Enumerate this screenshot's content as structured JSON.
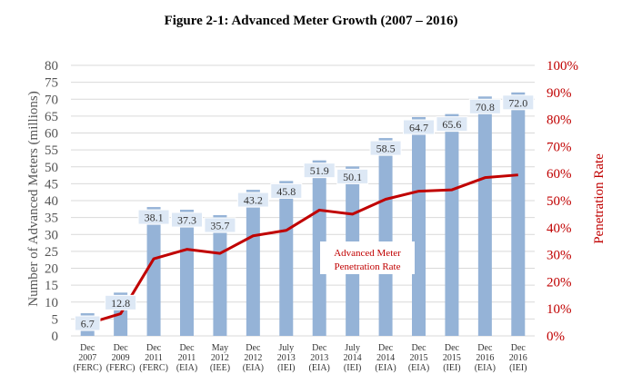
{
  "chart_data": {
    "type": "bar",
    "title": "Figure 2-1: Advanced Meter Growth (2007 – 2016)",
    "ylabel": "Number of Advanced Meters (millions)",
    "y2label": "Penetration Rate",
    "ylim": [
      0,
      80
    ],
    "y2lim": [
      0,
      100
    ],
    "yticks": [
      "0",
      "5",
      "10",
      "15",
      "20",
      "25",
      "30",
      "35",
      "40",
      "45",
      "50",
      "55",
      "60",
      "65",
      "70",
      "75",
      "80"
    ],
    "y2ticks": [
      "0%",
      "10%",
      "20%",
      "30%",
      "40%",
      "50%",
      "60%",
      "70%",
      "80%",
      "90%",
      "100%"
    ],
    "grid": true,
    "categories": [
      [
        "Dec",
        "2007",
        "(FERC)"
      ],
      [
        "Dec",
        "2009",
        "(FERC)"
      ],
      [
        "Dec",
        "2011",
        "(FERC)"
      ],
      [
        "Dec",
        "2011",
        "(EIA)"
      ],
      [
        "May",
        "2012",
        "(IEE)"
      ],
      [
        "Dec",
        "2012",
        "(EIA)"
      ],
      [
        "July",
        "2013",
        "(IEI)"
      ],
      [
        "Dec",
        "2013",
        "(EIA)"
      ],
      [
        "July",
        "2014",
        "(IEI)"
      ],
      [
        "Dec",
        "2014",
        "(EIA)"
      ],
      [
        "Dec",
        "2015",
        "(EIA)"
      ],
      [
        "Dec",
        "2015",
        "(IEI)"
      ],
      [
        "Dec",
        "2016",
        "(EIA)"
      ],
      [
        "Dec",
        "2016",
        "(IEI)"
      ]
    ],
    "series": [
      {
        "type": "bar",
        "axis": "left",
        "color": "#95b3d7",
        "values": [
          6.7,
          12.8,
          38.1,
          37.3,
          35.7,
          43.2,
          45.8,
          51.9,
          50.1,
          58.5,
          64.7,
          65.6,
          70.8,
          72.0
        ],
        "labels": [
          "6.7",
          "12.8",
          "38.1",
          "37.3",
          "35.7",
          "43.2",
          "45.8",
          "51.9",
          "50.1",
          "58.5",
          "64.7",
          "65.6",
          "70.8",
          "72.0"
        ]
      },
      {
        "type": "line",
        "axis": "right",
        "name": "Advanced Meter Penetration Rate",
        "color": "#c00000",
        "values": [
          4.5,
          8.2,
          28.5,
          32.0,
          30.5,
          37.0,
          39.0,
          46.5,
          45.0,
          50.5,
          53.5,
          54.0,
          58.5,
          59.5
        ]
      }
    ],
    "annotation": [
      "Advanced Meter",
      "Penetration Rate"
    ]
  }
}
